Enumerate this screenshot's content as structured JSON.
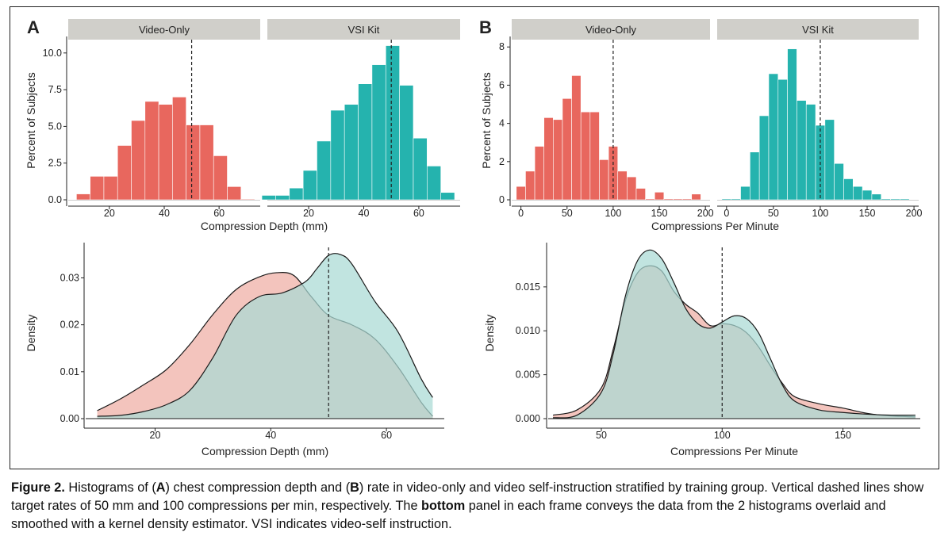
{
  "colors": {
    "video_only": "#e8675e",
    "vsi_kit": "#25b3ae",
    "video_only_fill": "#f3c4bd",
    "vsi_fill": "#a9d9d4",
    "overlap_fill": "#9fc6bd",
    "strip": "#d0cfca"
  },
  "caption": {
    "figure_label": "Figure 2.",
    "text_1": " Histograms of (",
    "a": "A",
    "text_2": ") chest compression depth and (",
    "b": "B",
    "text_3": ") rate in video-only and video self-instruction stratified by training group. Vertical dashed lines show target rates of 50 mm and 100 compressions per min, respectively. The ",
    "bold_word": "bottom",
    "text_4": " panel in each frame conveys the data from the 2 histograms overlaid and smoothed with a kernel density estimator. VSI indicates video-self instruction."
  },
  "chart_data": [
    {
      "panel": "A",
      "type": "bar",
      "facets": [
        {
          "label": "Video-Only",
          "color": "video_only",
          "bin_start": 8,
          "bin_width": 5,
          "values": [
            0.4,
            1.6,
            1.6,
            3.7,
            5.4,
            6.7,
            6.5,
            7.0,
            5.1,
            5.1,
            3.0,
            0.9,
            0.05
          ]
        },
        {
          "label": "VSI Kit",
          "color": "vsi_kit",
          "bin_start": 3,
          "bin_width": 5,
          "values": [
            0.3,
            0.3,
            0.8,
            2.0,
            4.0,
            6.1,
            6.5,
            7.9,
            9.2,
            10.5,
            7.8,
            4.2,
            2.3,
            0.5
          ]
        }
      ],
      "xlabel": "Compression Depth (mm)",
      "ylabel": "Percent of Subjects",
      "xlim": [
        5,
        75
      ],
      "ylim": [
        0,
        10.8
      ],
      "xticks": [
        20,
        40,
        60
      ],
      "yticks": [
        "0.0",
        "2.5",
        "5.0",
        "7.5",
        "10.0"
      ],
      "ytick_values": [
        0,
        2.5,
        5,
        7.5,
        10
      ],
      "vline": 50
    },
    {
      "panel": "B",
      "type": "bar",
      "facets": [
        {
          "label": "Video-Only",
          "color": "video_only",
          "bin_start": -5,
          "bin_width": 10,
          "values": [
            0.7,
            1.5,
            2.8,
            4.3,
            4.2,
            5.3,
            6.5,
            4.6,
            4.6,
            2.1,
            2.8,
            1.5,
            1.2,
            0.6,
            0.05,
            0.4,
            0.05,
            0.05,
            0.05,
            0.3
          ]
        },
        {
          "label": "VSI Kit",
          "color": "vsi_kit",
          "bin_start": -5,
          "bin_width": 10,
          "values": [
            0.05,
            0.05,
            0.7,
            2.5,
            4.4,
            6.6,
            6.3,
            7.9,
            5.2,
            5.0,
            3.9,
            4.2,
            1.9,
            1.1,
            0.7,
            0.5,
            0.3,
            0.05,
            0.05,
            0.05
          ]
        }
      ],
      "xlabel": "Compressions Per Minute",
      "ylabel": "Percent of Subjects",
      "xlim": [
        -10,
        205
      ],
      "ylim": [
        0,
        8.3
      ],
      "xticks": [
        0,
        50,
        100,
        150,
        200
      ],
      "yticks": [
        "0",
        "2",
        "4",
        "6",
        "8"
      ],
      "ytick_values": [
        0,
        2,
        4,
        6,
        8
      ],
      "vline": 100
    },
    {
      "panel": "A-density",
      "type": "area",
      "series": [
        {
          "color": "video_only",
          "x": [
            10,
            14,
            18,
            22,
            26,
            30,
            34,
            38,
            41,
            44,
            47,
            50,
            54,
            58,
            62,
            66,
            68
          ],
          "y": [
            0.0017,
            0.0042,
            0.0072,
            0.0105,
            0.0158,
            0.0222,
            0.0275,
            0.0302,
            0.0311,
            0.0305,
            0.026,
            0.022,
            0.02,
            0.017,
            0.011,
            0.0035,
            0.0005
          ]
        },
        {
          "color": "vsi_kit",
          "x": [
            10,
            14,
            18,
            22,
            26,
            30,
            34,
            38,
            42,
            46,
            48,
            50,
            52,
            54,
            58,
            62,
            66,
            68
          ],
          "y": [
            0.0005,
            0.0007,
            0.0015,
            0.003,
            0.006,
            0.013,
            0.022,
            0.026,
            0.0268,
            0.0292,
            0.032,
            0.0348,
            0.035,
            0.033,
            0.025,
            0.0185,
            0.0085,
            0.0045
          ]
        }
      ],
      "xlabel": "Compression Depth (mm)",
      "ylabel": "Density",
      "xlim": [
        8,
        70
      ],
      "ylim": [
        0,
        0.0365
      ],
      "xticks": [
        20,
        40,
        60
      ],
      "yticks": [
        "0.00",
        "0.01",
        "0.02",
        "0.03"
      ],
      "ytick_values": [
        0,
        0.01,
        0.02,
        0.03
      ],
      "vline": 50
    },
    {
      "panel": "B-density",
      "type": "area",
      "series": [
        {
          "color": "video_only",
          "x": [
            30,
            40,
            50,
            55,
            60,
            65,
            70,
            75,
            80,
            85,
            90,
            95,
            100,
            105,
            110,
            115,
            120,
            125,
            130,
            140,
            150,
            160,
            170,
            180
          ],
          "y": [
            0.0004,
            0.001,
            0.0035,
            0.008,
            0.0135,
            0.0166,
            0.0174,
            0.0168,
            0.0145,
            0.013,
            0.012,
            0.0106,
            0.0108,
            0.0106,
            0.0098,
            0.0082,
            0.006,
            0.004,
            0.0025,
            0.0017,
            0.0012,
            0.0006,
            0.0003,
            0.0002
          ]
        },
        {
          "color": "vsi_kit",
          "x": [
            30,
            40,
            50,
            55,
            60,
            65,
            70,
            75,
            80,
            85,
            90,
            95,
            100,
            105,
            110,
            115,
            120,
            125,
            130,
            140,
            150,
            160,
            170,
            180
          ],
          "y": [
            0.0001,
            0.0004,
            0.003,
            0.0075,
            0.014,
            0.018,
            0.0192,
            0.0182,
            0.0155,
            0.0125,
            0.0108,
            0.0103,
            0.011,
            0.0117,
            0.0114,
            0.0098,
            0.0068,
            0.0038,
            0.002,
            0.001,
            0.0007,
            0.0005,
            0.0004,
            0.0004
          ]
        }
      ],
      "xlabel": "Compressions Per Minute",
      "ylabel": "Density",
      "xlim": [
        28,
        182
      ],
      "ylim": [
        0,
        0.0195
      ],
      "xticks": [
        50,
        100,
        150
      ],
      "yticks": [
        "0.000",
        "0.005",
        "0.010",
        "0.015"
      ],
      "ytick_values": [
        0,
        0.005,
        0.01,
        0.015
      ],
      "vline": 100
    }
  ]
}
